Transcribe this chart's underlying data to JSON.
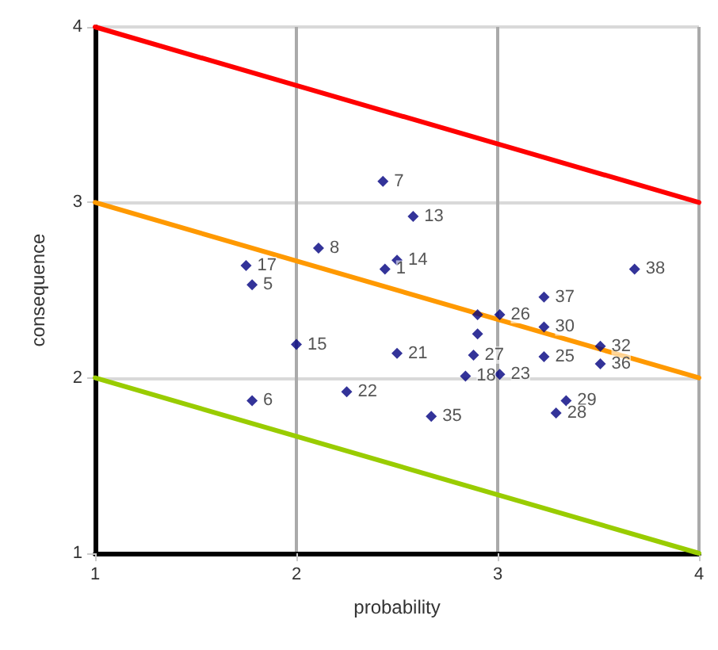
{
  "chart_data": {
    "type": "scatter",
    "xlabel": "probability",
    "ylabel": "consequence",
    "xlim": [
      1,
      4
    ],
    "xticks": [
      1,
      2,
      3,
      4
    ],
    "ylim": [
      1,
      4
    ],
    "yticks": [
      1,
      2,
      3,
      4
    ],
    "grid": true,
    "marker": "diamond",
    "series": [
      {
        "type": "line",
        "color": "#ff0000",
        "x": [
          1,
          4
        ],
        "values": [
          4,
          3
        ],
        "marker": "none",
        "line_style": "solid"
      },
      {
        "type": "line",
        "color": "#ff9900",
        "x": [
          1,
          4
        ],
        "values": [
          3,
          2
        ],
        "marker": "none",
        "line_style": "solid"
      },
      {
        "type": "line",
        "color": "#99cc00",
        "x": [
          1,
          4
        ],
        "values": [
          2,
          1
        ],
        "marker": "none",
        "line_style": "solid"
      },
      {
        "color": "#000080",
        "x": [
          2.43,
          2.58,
          2.11,
          2.5,
          2.44,
          1.75,
          1.78,
          2.0,
          1.78,
          2.25,
          2.5,
          2.67,
          3.68,
          3.23,
          2.9,
          3.01,
          3.23,
          2.9,
          2.88,
          2.84,
          3.01,
          3.23,
          3.51,
          3.51,
          3.34,
          3.29
        ],
        "values": [
          3.12,
          2.92,
          2.74,
          2.67,
          2.62,
          2.64,
          2.53,
          2.19,
          1.87,
          1.92,
          2.14,
          1.78,
          2.62,
          2.46,
          2.36,
          2.36,
          2.29,
          2.25,
          2.13,
          2.01,
          2.02,
          2.12,
          2.18,
          2.08,
          1.87,
          1.8
        ]
      }
    ],
    "annotations": [
      {
        "text": "7",
        "x": 2.43,
        "y": 3.12
      },
      {
        "text": "13",
        "x": 2.58,
        "y": 2.92
      },
      {
        "text": "8",
        "x": 2.11,
        "y": 2.74
      },
      {
        "text": "14",
        "x": 2.5,
        "y": 2.67
      },
      {
        "text": "1",
        "x": 2.44,
        "y": 2.62
      },
      {
        "text": "17",
        "x": 1.75,
        "y": 2.64
      },
      {
        "text": "5",
        "x": 1.78,
        "y": 2.53
      },
      {
        "text": "15",
        "x": 2.0,
        "y": 2.19
      },
      {
        "text": "6",
        "x": 1.78,
        "y": 1.87
      },
      {
        "text": "22",
        "x": 2.25,
        "y": 1.92
      },
      {
        "text": "21",
        "x": 2.5,
        "y": 2.14
      },
      {
        "text": "35",
        "x": 2.67,
        "y": 1.78
      },
      {
        "text": "38",
        "x": 3.68,
        "y": 2.62
      },
      {
        "text": "37",
        "x": 3.23,
        "y": 2.46
      },
      {
        "text": "26",
        "x": 3.01,
        "y": 2.36
      },
      {
        "text": "30",
        "x": 3.23,
        "y": 2.29
      },
      {
        "text": "27",
        "x": 2.88,
        "y": 2.13
      },
      {
        "text": "18",
        "x": 2.84,
        "y": 2.01
      },
      {
        "text": "23",
        "x": 3.01,
        "y": 2.02
      },
      {
        "text": "25",
        "x": 3.23,
        "y": 2.12
      },
      {
        "text": "32",
        "x": 3.51,
        "y": 2.18
      },
      {
        "text": "36",
        "x": 3.51,
        "y": 2.08
      },
      {
        "text": "29",
        "x": 3.34,
        "y": 1.87
      },
      {
        "text": "28",
        "x": 3.29,
        "y": 1.8
      }
    ]
  }
}
